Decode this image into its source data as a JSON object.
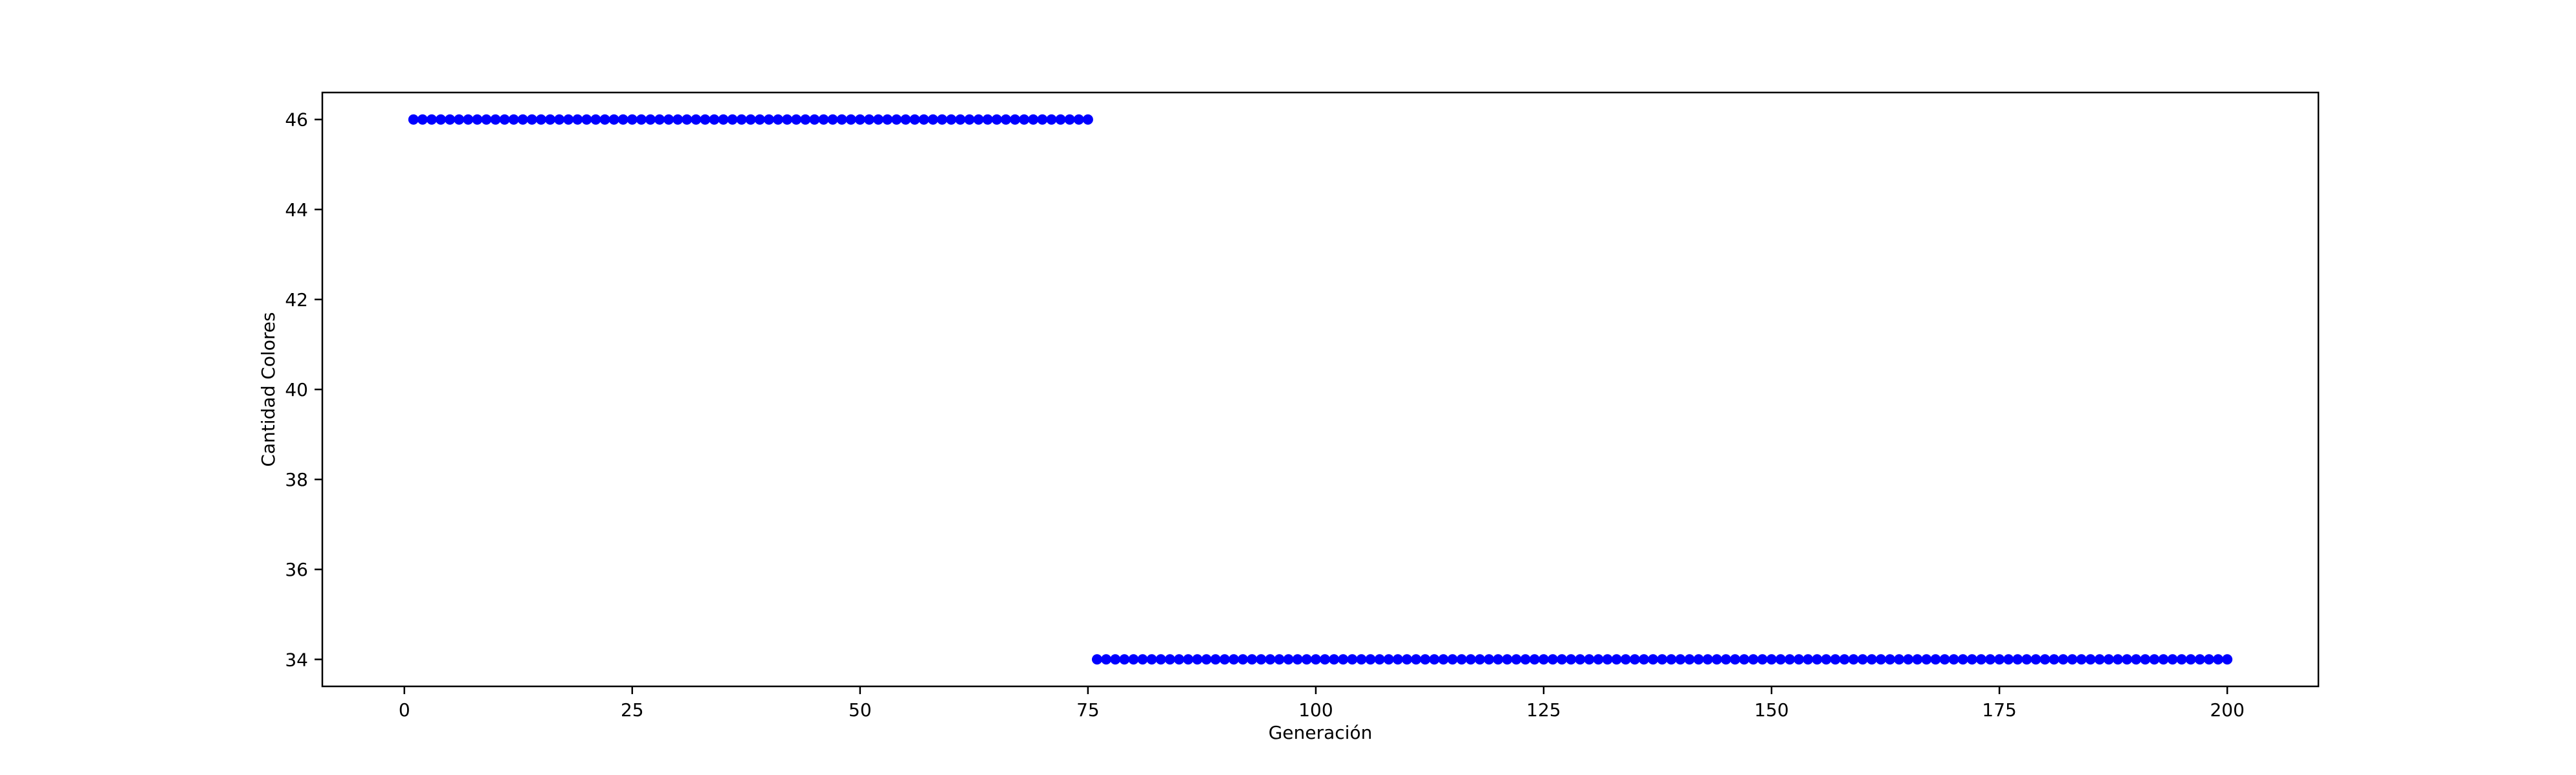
{
  "chart_data": {
    "type": "scatter",
    "title": "",
    "xlabel": "Generación",
    "ylabel": "Cantidad Colores",
    "xlim": [
      -9,
      210
    ],
    "ylim": [
      33.4,
      46.6
    ],
    "xticks": [
      0,
      25,
      50,
      75,
      100,
      125,
      150,
      175,
      200
    ],
    "yticks": [
      34,
      36,
      38,
      40,
      42,
      44,
      46
    ],
    "grid": false,
    "marker_color": "#0000ff",
    "series": [
      {
        "segments": [
          {
            "x_start": 1,
            "x_end": 75,
            "step": 1,
            "y": 46
          },
          {
            "x_start": 76,
            "x_end": 200,
            "step": 1,
            "y": 34
          }
        ]
      }
    ]
  }
}
